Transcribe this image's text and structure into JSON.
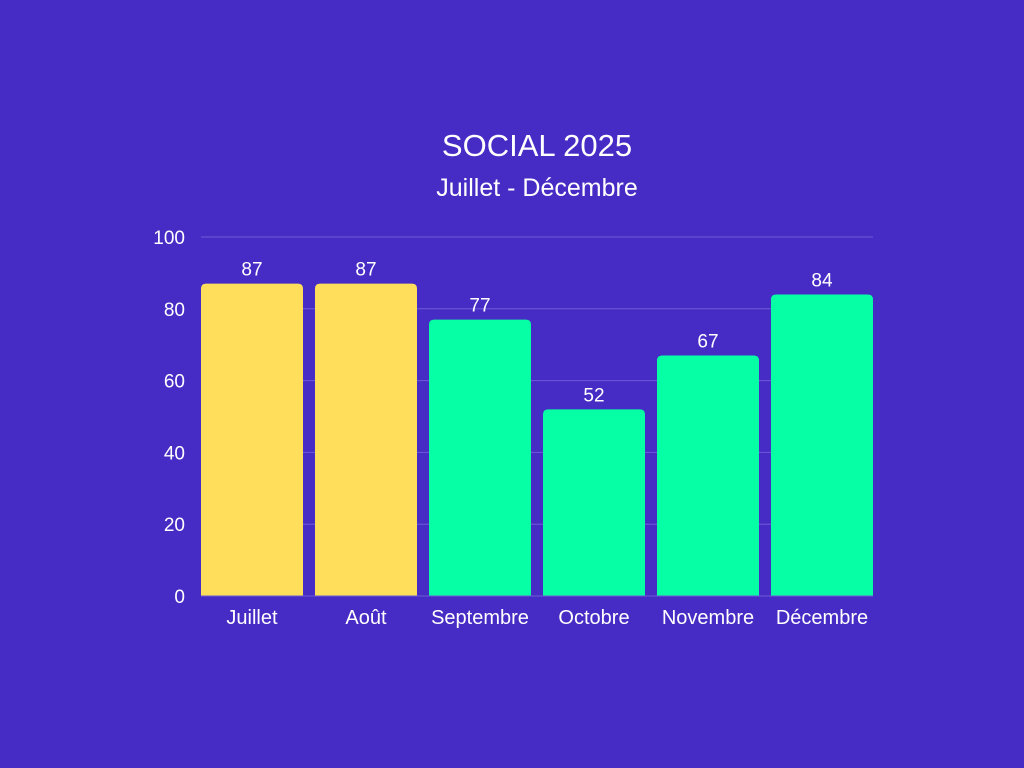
{
  "chart_data": {
    "type": "bar",
    "title": "SOCIAL 2025",
    "subtitle": "Juillet - Décembre",
    "categories": [
      "Juillet",
      "Août",
      "Septembre",
      "Octobre",
      "Novembre",
      "Décembre"
    ],
    "values": [
      87,
      87,
      77,
      52,
      67,
      84
    ],
    "bar_colors": [
      "#FFDE5C",
      "#FFDE5C",
      "#06FFA5",
      "#06FFA5",
      "#06FFA5",
      "#06FFA5"
    ],
    "ylim": [
      0,
      100
    ],
    "yticks": [
      0,
      20,
      40,
      60,
      80,
      100
    ],
    "grid": true,
    "xlabel": "",
    "ylabel": ""
  }
}
